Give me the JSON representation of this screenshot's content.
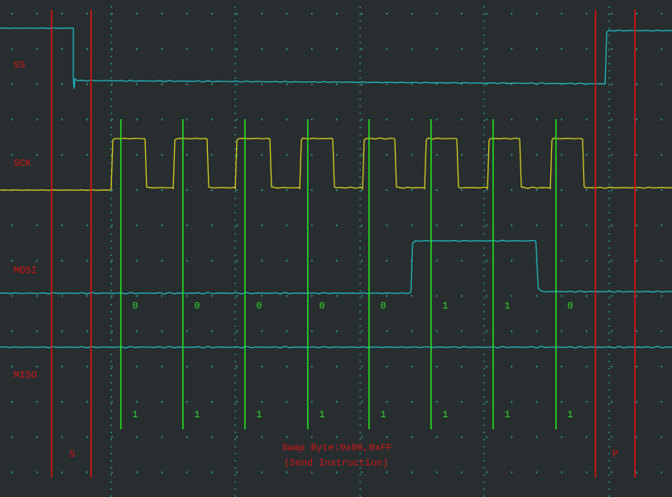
{
  "signals": {
    "ss": "SS",
    "sck": "SCK",
    "mosi": "MOSI",
    "miso": "MISO"
  },
  "markers": {
    "start": "S",
    "stop": "P"
  },
  "caption": {
    "line1": "Swap Byte:0x06,0xFF",
    "line2": "(Send Instruction)"
  },
  "mosi_bits": [
    "0",
    "0",
    "0",
    "0",
    "0",
    "1",
    "1",
    "0"
  ],
  "miso_bits": [
    "1",
    "1",
    "1",
    "1",
    "1",
    "1",
    "1",
    "1"
  ],
  "colors": {
    "background": "#282e2f",
    "ss_trace": "#22b8c0",
    "sck_trace": "#d8d020",
    "data_trace": "#22b8c0",
    "sample_line": "#22e022",
    "boundary_line": "#e01010",
    "annotation_text": "#d41414",
    "grid": "#2f8a80"
  }
}
